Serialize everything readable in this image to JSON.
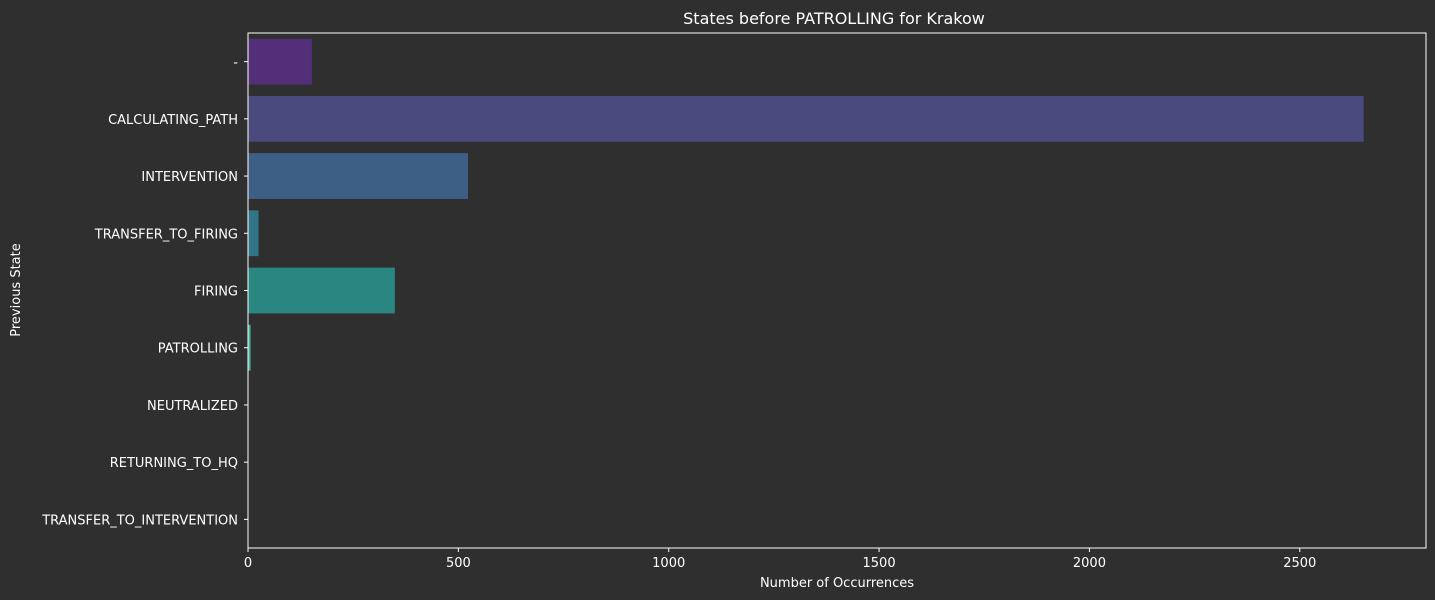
{
  "chart_data": {
    "type": "bar",
    "orientation": "horizontal",
    "title": "States before PATROLLING for Krakow",
    "xlabel": "Number of Occurrences",
    "ylabel": "Previous State",
    "categories": [
      "-",
      "CALCULATING_PATH",
      "INTERVENTION",
      "TRANSFER_TO_FIRING",
      "FIRING",
      "PATROLLING",
      "NEUTRALIZED",
      "RETURNING_TO_HQ",
      "TRANSFER_TO_INTERVENTION"
    ],
    "values": [
      152,
      2652,
      523,
      25,
      349,
      6,
      1,
      1,
      1
    ],
    "colors": [
      "#522f78",
      "#4a4a7e",
      "#3e5f85",
      "#337588",
      "#2a8680",
      "#3fb79d",
      "#5fc9a0",
      "#90d69a",
      "#c9e48e"
    ],
    "xlim": [
      0,
      2800
    ],
    "xticks": [
      0,
      500,
      1000,
      1500,
      2000,
      2500
    ],
    "grid": false,
    "legend": "none"
  },
  "style": {
    "background": "#2f2f2f",
    "text_color": "#ffffff"
  }
}
